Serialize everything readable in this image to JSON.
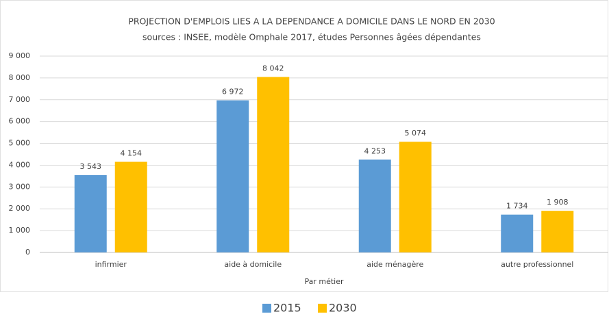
{
  "chart_data": {
    "type": "bar",
    "title": "PROJECTION D'EMPLOIS LIES A LA DEPENDANCE A DOMICILE DANS LE NORD EN 2030",
    "subtitle": "sources : INSEE, modèle Omphale 2017, études Personnes âgées dépendantes",
    "x_label": "Par métier",
    "categories": [
      "infirmier",
      "aide à domicile",
      "aide ménagère",
      "autre professionnel"
    ],
    "series": [
      {
        "name": "2015",
        "color": "#5b9bd5",
        "values": [
          3543,
          6972,
          4253,
          1734
        ],
        "value_labels": [
          "3 543",
          "6 972",
          "4 253",
          "1 734"
        ]
      },
      {
        "name": "2030",
        "color": "#ffc000",
        "values": [
          4154,
          8042,
          5074,
          1908
        ],
        "value_labels": [
          "4 154",
          "8 042",
          "5 074",
          "1 908"
        ]
      }
    ],
    "ylim": [
      0,
      9000
    ],
    "yticks": [
      0,
      {
        "value": 1000,
        "label": "1 000"
      },
      {
        "value": 2000,
        "label": "2 000"
      },
      {
        "value": 3000,
        "label": "3 000"
      },
      {
        "value": 4000,
        "label": "4 000"
      },
      {
        "value": 5000,
        "label": "5 000"
      },
      {
        "value": 6000,
        "label": "6 000"
      },
      {
        "value": 7000,
        "label": "7 000"
      },
      {
        "value": 8000,
        "label": "8 000"
      },
      {
        "value": 9000,
        "label": "9 000"
      }
    ],
    "grid": true,
    "legend": "bottom"
  }
}
